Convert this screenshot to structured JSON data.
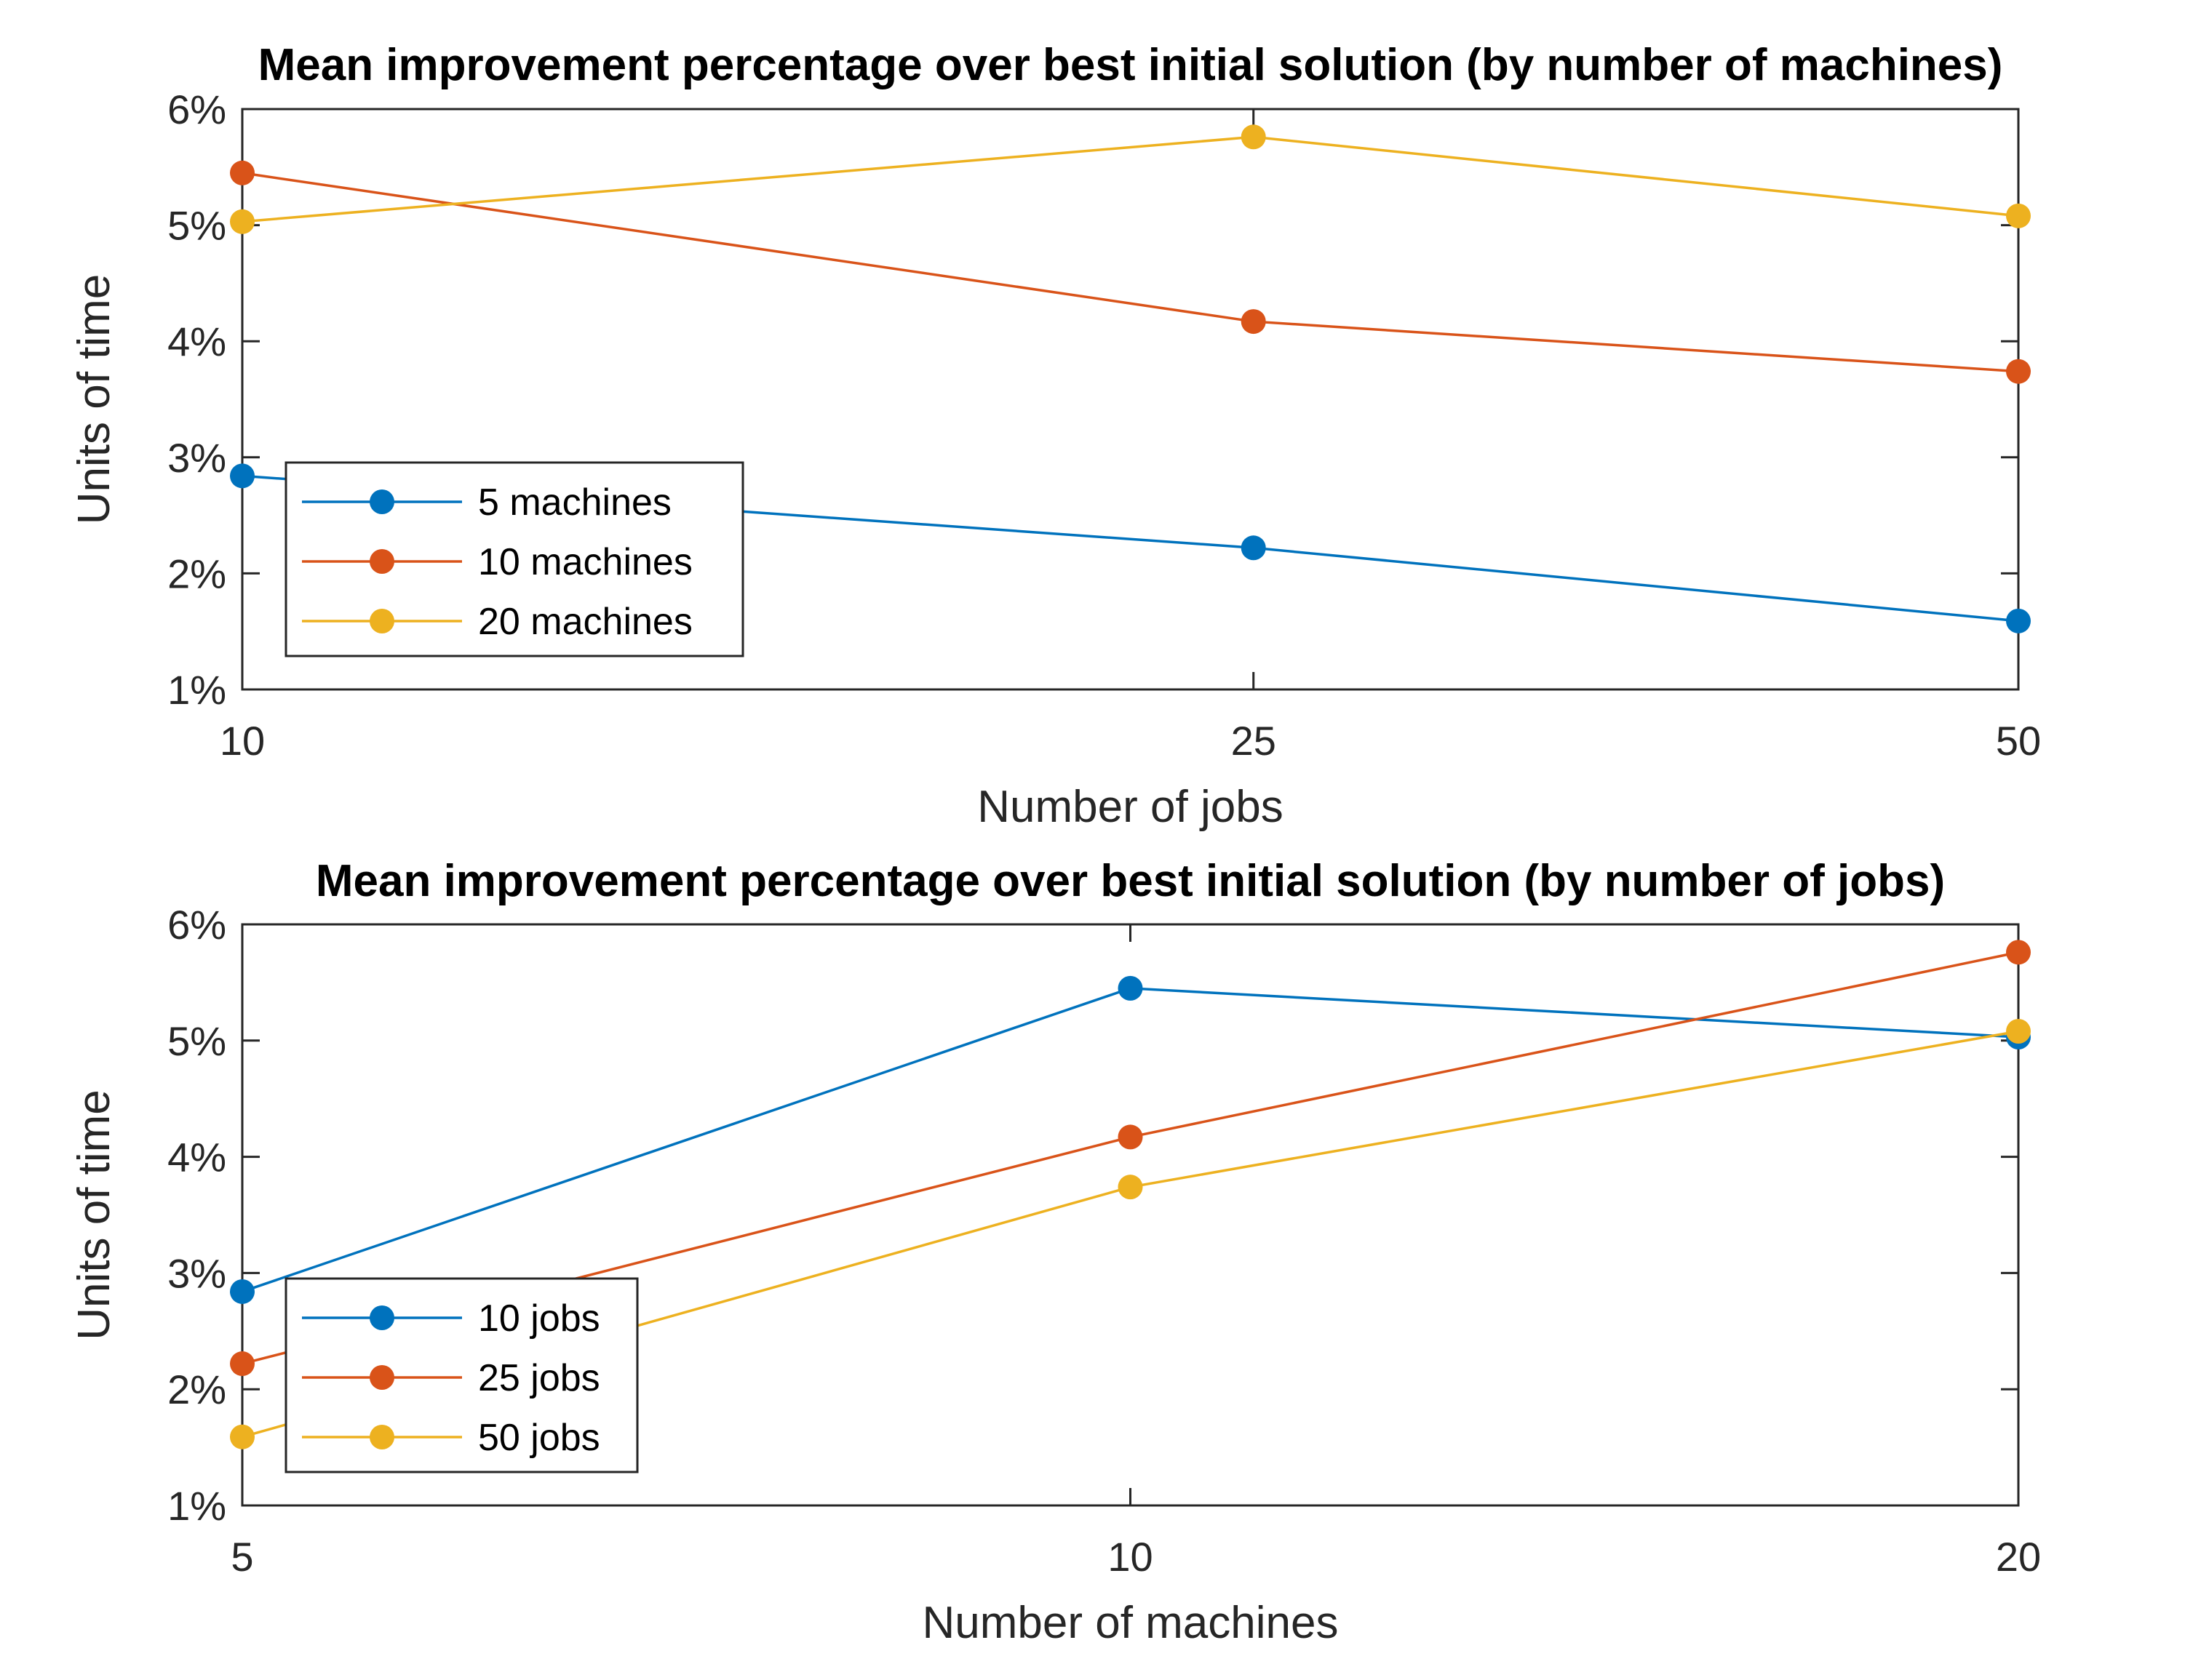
{
  "chart_data": [
    {
      "type": "line",
      "title": "Mean improvement percentage over best initial solution (by number of machines)",
      "xlabel": "Number of jobs",
      "ylabel": "Units of time",
      "x_categories": [
        "10",
        "25",
        "50"
      ],
      "x": [
        10,
        25,
        50
      ],
      "ylim": [
        1,
        6
      ],
      "yticks": [
        "1%",
        "2%",
        "3%",
        "4%",
        "5%",
        "6%"
      ],
      "legend_position": "lower-left",
      "series": [
        {
          "name": "5 machines",
          "color": "#0072BD",
          "values": [
            2.84,
            2.22,
            1.59
          ]
        },
        {
          "name": "10 machines",
          "color": "#D95319",
          "values": [
            5.45,
            4.17,
            3.74
          ]
        },
        {
          "name": "20 machines",
          "color": "#EDB120",
          "values": [
            5.03,
            5.76,
            5.08
          ]
        }
      ]
    },
    {
      "type": "line",
      "title": "Mean improvement percentage over best initial solution (by number of jobs)",
      "xlabel": "Number of machines",
      "ylabel": "Units of time",
      "x_categories": [
        "5",
        "10",
        "20"
      ],
      "x": [
        5,
        10,
        20
      ],
      "ylim": [
        1,
        6
      ],
      "yticks": [
        "1%",
        "2%",
        "3%",
        "4%",
        "5%",
        "6%"
      ],
      "legend_position": "lower-left",
      "series": [
        {
          "name": "10 jobs",
          "color": "#0072BD",
          "values": [
            2.84,
            5.45,
            5.03
          ]
        },
        {
          "name": "25 jobs",
          "color": "#D95319",
          "values": [
            2.22,
            4.17,
            5.76
          ]
        },
        {
          "name": "50 jobs",
          "color": "#EDB120",
          "values": [
            1.59,
            3.74,
            5.08
          ]
        }
      ]
    }
  ]
}
